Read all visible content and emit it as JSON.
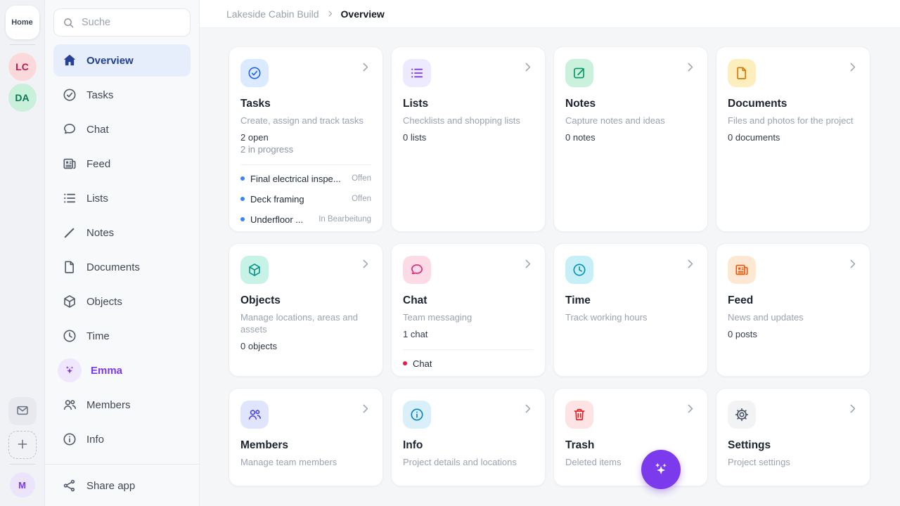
{
  "colors": {
    "accent_purple": "#7c3aed",
    "active_blue": "#1f3e96"
  },
  "rail": {
    "home_label": "Home",
    "workspace_avatars": [
      {
        "initials": "LC",
        "bg": "#fbd9db",
        "color": "#c0164f"
      },
      {
        "initials": "DA",
        "bg": "#c9f0da",
        "color": "#0b7a55"
      }
    ],
    "user_avatar": {
      "initials": "M",
      "bg": "#ebe4fb",
      "color": "#7c3aed"
    }
  },
  "sidebar": {
    "search_placeholder": "Suche",
    "items": [
      {
        "label": "Overview",
        "icon": "home-icon",
        "active": true
      },
      {
        "label": "Tasks",
        "icon": "check-circle-icon"
      },
      {
        "label": "Chat",
        "icon": "chat-bubble-icon"
      },
      {
        "label": "Feed",
        "icon": "newspaper-icon"
      },
      {
        "label": "Lists",
        "icon": "list-icon"
      },
      {
        "label": "Notes",
        "icon": "pencil-icon"
      },
      {
        "label": "Documents",
        "icon": "document-icon"
      },
      {
        "label": "Objects",
        "icon": "cube-icon"
      },
      {
        "label": "Time",
        "icon": "clock-icon"
      },
      {
        "label": "Emma",
        "icon": "sparkles-icon",
        "accent": true
      },
      {
        "label": "Members",
        "icon": "users-icon"
      },
      {
        "label": "Info",
        "icon": "info-icon"
      }
    ],
    "footer": {
      "label": "Share app",
      "icon": "share-icon"
    }
  },
  "breadcrumb": {
    "parent": "Lakeside Cabin Build",
    "current": "Overview"
  },
  "cards": [
    {
      "title": "Tasks",
      "subtitle": "Create, assign and track tasks",
      "icon": "check-circle-icon",
      "icon_bg": "#dbeafe",
      "icon_color": "#2563eb",
      "stats": [
        {
          "text": "2 open"
        },
        {
          "text": "2 in progress",
          "muted": true
        }
      ],
      "list": {
        "bullet_color": "#3b82f6",
        "items": [
          {
            "text": "Final electrical inspe...",
            "status": "Offen"
          },
          {
            "text": "Deck framing",
            "status": "Offen"
          },
          {
            "text": "Underfloor ...",
            "status": "In Bearbeitung"
          }
        ]
      }
    },
    {
      "title": "Lists",
      "subtitle": "Checklists and shopping lists",
      "icon": "list-icon",
      "icon_bg": "#ede9fe",
      "icon_color": "#7c3aed",
      "stats": [
        {
          "text": "0 lists"
        }
      ]
    },
    {
      "title": "Notes",
      "subtitle": "Capture notes and ideas",
      "icon": "pencil-square-icon",
      "icon_bg": "#cbf1dc",
      "icon_color": "#059669",
      "stats": [
        {
          "text": "0 notes"
        }
      ]
    },
    {
      "title": "Documents",
      "subtitle": "Files and photos for the project",
      "icon": "document-icon",
      "icon_bg": "#fdeebe",
      "icon_color": "#d97706",
      "stats": [
        {
          "text": "0 documents"
        }
      ]
    },
    {
      "title": "Objects",
      "subtitle": "Manage locations, areas and assets",
      "icon": "cube-icon",
      "icon_bg": "#c7f2e6",
      "icon_color": "#0d9488",
      "stats": [
        {
          "text": "0 objects"
        }
      ]
    },
    {
      "title": "Chat",
      "subtitle": "Team messaging",
      "icon": "chat-bubble-icon",
      "icon_bg": "#fcdbe6",
      "icon_color": "#db2777",
      "stats": [
        {
          "text": "1 chat"
        }
      ],
      "list": {
        "bullet_color": "#e11d48",
        "items": [
          {
            "text": "Chat",
            "status": ""
          }
        ]
      }
    },
    {
      "title": "Time",
      "subtitle": "Track working hours",
      "icon": "clock-icon",
      "icon_bg": "#c6eff7",
      "icon_color": "#0891b2",
      "stats": []
    },
    {
      "title": "Feed",
      "subtitle": "News and updates",
      "icon": "newspaper-icon",
      "icon_bg": "#fde8d3",
      "icon_color": "#ea580c",
      "stats": [
        {
          "text": "0 posts"
        }
      ]
    },
    {
      "title": "Members",
      "subtitle": "Manage team members",
      "icon": "users-icon",
      "icon_bg": "#e0e4fc",
      "icon_color": "#4f46e5",
      "stats": []
    },
    {
      "title": "Info",
      "subtitle": "Project details and locations",
      "icon": "info-icon",
      "icon_bg": "#d9effa",
      "icon_color": "#0284c7",
      "stats": []
    },
    {
      "title": "Trash",
      "subtitle": "Deleted items",
      "icon": "trash-icon",
      "icon_bg": "#fde3e3",
      "icon_color": "#dc2626",
      "stats": []
    },
    {
      "title": "Settings",
      "subtitle": "Project settings",
      "icon": "gear-icon",
      "icon_bg": "#f1f3f5",
      "icon_color": "#4b5563",
      "stats": []
    }
  ],
  "fab": {
    "icon": "sparkles-icon",
    "bg": "#7c3aed"
  }
}
